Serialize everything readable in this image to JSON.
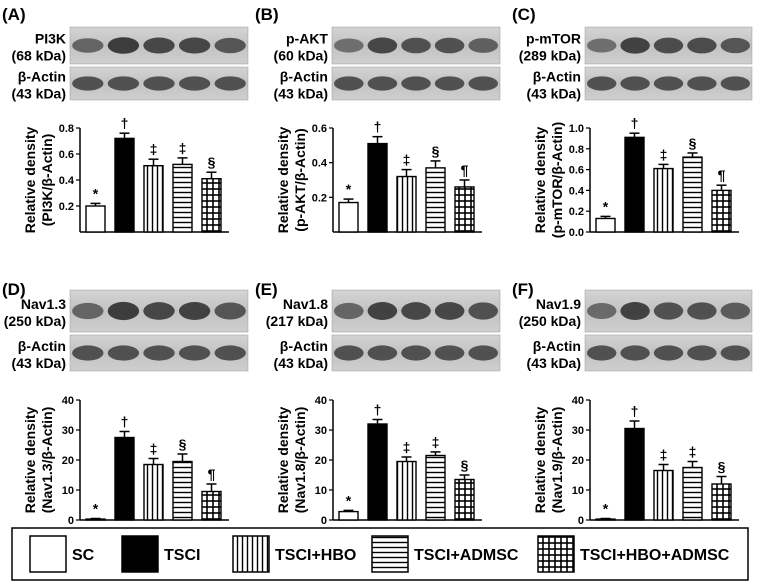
{
  "legend": {
    "items": [
      {
        "label": "SC",
        "pattern": "white"
      },
      {
        "label": "TSCI",
        "pattern": "black"
      },
      {
        "label": "TSCI+HBO",
        "pattern": "vertical"
      },
      {
        "label": "TSCI+ADMSC",
        "pattern": "horizontal"
      },
      {
        "label": "TSCI+HBO+ADMSC",
        "pattern": "grid"
      }
    ]
  },
  "chart_data": [
    {
      "panel": "(A)",
      "type": "bar",
      "blot": {
        "target": "PI3K",
        "target_kda": "(68 kDa)",
        "control": "β-Actin",
        "control_kda": "(43 kDa)",
        "band_intensity": [
          0.55,
          0.95,
          0.85,
          0.85,
          0.7
        ]
      },
      "ylabel": [
        "Relative density",
        "(PI3K/β-Actin)"
      ],
      "ylim": [
        0,
        0.8
      ],
      "yticks": [
        "0.2",
        "0.4",
        "0.6",
        "0.8"
      ],
      "ytick_values": [
        0.2,
        0.4,
        0.6,
        0.8
      ],
      "categories": [
        "SC",
        "TSCI",
        "TSCI+HBO",
        "TSCI+ADMSC",
        "TSCI+HBO+ADMSC"
      ],
      "values": [
        0.2,
        0.72,
        0.51,
        0.52,
        0.41
      ],
      "errors": [
        0.02,
        0.04,
        0.05,
        0.05,
        0.05
      ],
      "markers": [
        "*",
        "†",
        "‡",
        "‡",
        "§"
      ]
    },
    {
      "panel": "(B)",
      "type": "bar",
      "blot": {
        "target": "p-AKT",
        "target_kda": "(60 kDa)",
        "control": "β-Actin",
        "control_kda": "(43 kDa)",
        "band_intensity": [
          0.45,
          0.85,
          0.75,
          0.75,
          0.6
        ]
      },
      "ylabel": [
        "Relative density",
        "(p-AKT/β-Actin)"
      ],
      "ylim": [
        0,
        0.6
      ],
      "yticks": [
        "0.2",
        "0.4",
        "0.6"
      ],
      "ytick_values": [
        0.2,
        0.4,
        0.6
      ],
      "categories": [
        "SC",
        "TSCI",
        "TSCI+HBO",
        "TSCI+ADMSC",
        "TSCI+HBO+ADMSC"
      ],
      "values": [
        0.17,
        0.51,
        0.32,
        0.37,
        0.26
      ],
      "errors": [
        0.02,
        0.04,
        0.04,
        0.04,
        0.04
      ],
      "markers": [
        "*",
        "†",
        "‡",
        "§",
        "¶"
      ]
    },
    {
      "panel": "(C)",
      "type": "bar",
      "blot": {
        "target": "p-mTOR",
        "target_kda": "(289 kDa)",
        "control": "β-Actin",
        "control_kda": "(43 kDa)",
        "band_intensity": [
          0.45,
          0.9,
          0.8,
          0.8,
          0.7
        ]
      },
      "ylabel": [
        "Relative density",
        "(p-mTOR/β-Actin)"
      ],
      "ylim": [
        0,
        1.0
      ],
      "yticks": [
        "0.0",
        "0.2",
        "0.4",
        "0.6",
        "0.8",
        "1.0"
      ],
      "ytick_values": [
        0.0,
        0.2,
        0.4,
        0.6,
        0.8,
        1.0
      ],
      "categories": [
        "SC",
        "TSCI",
        "TSCI+HBO",
        "TSCI+ADMSC",
        "TSCI+HBO+ADMSC"
      ],
      "values": [
        0.13,
        0.91,
        0.61,
        0.72,
        0.4
      ],
      "errors": [
        0.02,
        0.04,
        0.04,
        0.04,
        0.05
      ],
      "markers": [
        "*",
        "†",
        "‡",
        "§",
        "¶"
      ]
    },
    {
      "panel": "(D)",
      "type": "bar",
      "blot": {
        "target": "Nav1.3",
        "target_kda": "(250 kDa)",
        "control": "β-Actin",
        "control_kda": "(43 kDa)",
        "band_intensity": [
          0.55,
          0.95,
          0.85,
          0.9,
          0.7
        ]
      },
      "ylabel": [
        "Relative density",
        "(Nav1.3/β-Actin)"
      ],
      "ylim": [
        0,
        40
      ],
      "yticks": [
        "0",
        "10",
        "20",
        "30",
        "40"
      ],
      "ytick_values": [
        0,
        10,
        20,
        30,
        40
      ],
      "categories": [
        "SC",
        "TSCI",
        "TSCI+HBO",
        "TSCI+ADMSC",
        "TSCI+HBO+ADMSC"
      ],
      "values": [
        0.3,
        27.5,
        18.5,
        19.5,
        9.5
      ],
      "errors": [
        0.2,
        2.0,
        2.0,
        2.5,
        2.5
      ],
      "markers": [
        "*",
        "†",
        "‡",
        "§",
        "¶"
      ]
    },
    {
      "panel": "(E)",
      "type": "bar",
      "blot": {
        "target": "Nav1.8",
        "target_kda": "(217 kDa)",
        "control": "β-Actin",
        "control_kda": "(43 kDa)",
        "band_intensity": [
          0.55,
          0.9,
          0.85,
          0.85,
          0.75
        ]
      },
      "ylabel": [
        "Relative density",
        "(Nav1.8/β-Actin)"
      ],
      "ylim": [
        0,
        40
      ],
      "yticks": [
        "0",
        "10",
        "20",
        "30",
        "40"
      ],
      "ytick_values": [
        0,
        10,
        20,
        30,
        40
      ],
      "categories": [
        "SC",
        "TSCI",
        "TSCI+HBO",
        "TSCI+ADMSC",
        "TSCI+HBO+ADMSC"
      ],
      "values": [
        2.8,
        32.0,
        19.5,
        21.5,
        13.5
      ],
      "errors": [
        0.4,
        1.5,
        1.5,
        1.2,
        1.5
      ],
      "markers": [
        "*",
        "†",
        "‡",
        "‡",
        "§"
      ]
    },
    {
      "panel": "(F)",
      "type": "bar",
      "blot": {
        "target": "Nav1.9",
        "target_kda": "(250 kDa)",
        "control": "β-Actin",
        "control_kda": "(43 kDa)",
        "band_intensity": [
          0.5,
          0.9,
          0.75,
          0.75,
          0.65
        ]
      },
      "ylabel": [
        "Relative density",
        "(Nav1.9/β-Actin)"
      ],
      "ylim": [
        0,
        40
      ],
      "yticks": [
        "0",
        "10",
        "20",
        "30",
        "40"
      ],
      "ytick_values": [
        0,
        10,
        20,
        30,
        40
      ],
      "categories": [
        "SC",
        "TSCI",
        "TSCI+HBO",
        "TSCI+ADMSC",
        "TSCI+HBO+ADMSC"
      ],
      "values": [
        0.3,
        30.5,
        16.5,
        17.5,
        12.0
      ],
      "errors": [
        0.2,
        2.5,
        2.0,
        2.0,
        2.5
      ],
      "markers": [
        "*",
        "†",
        "‡",
        "‡",
        "§"
      ]
    }
  ]
}
